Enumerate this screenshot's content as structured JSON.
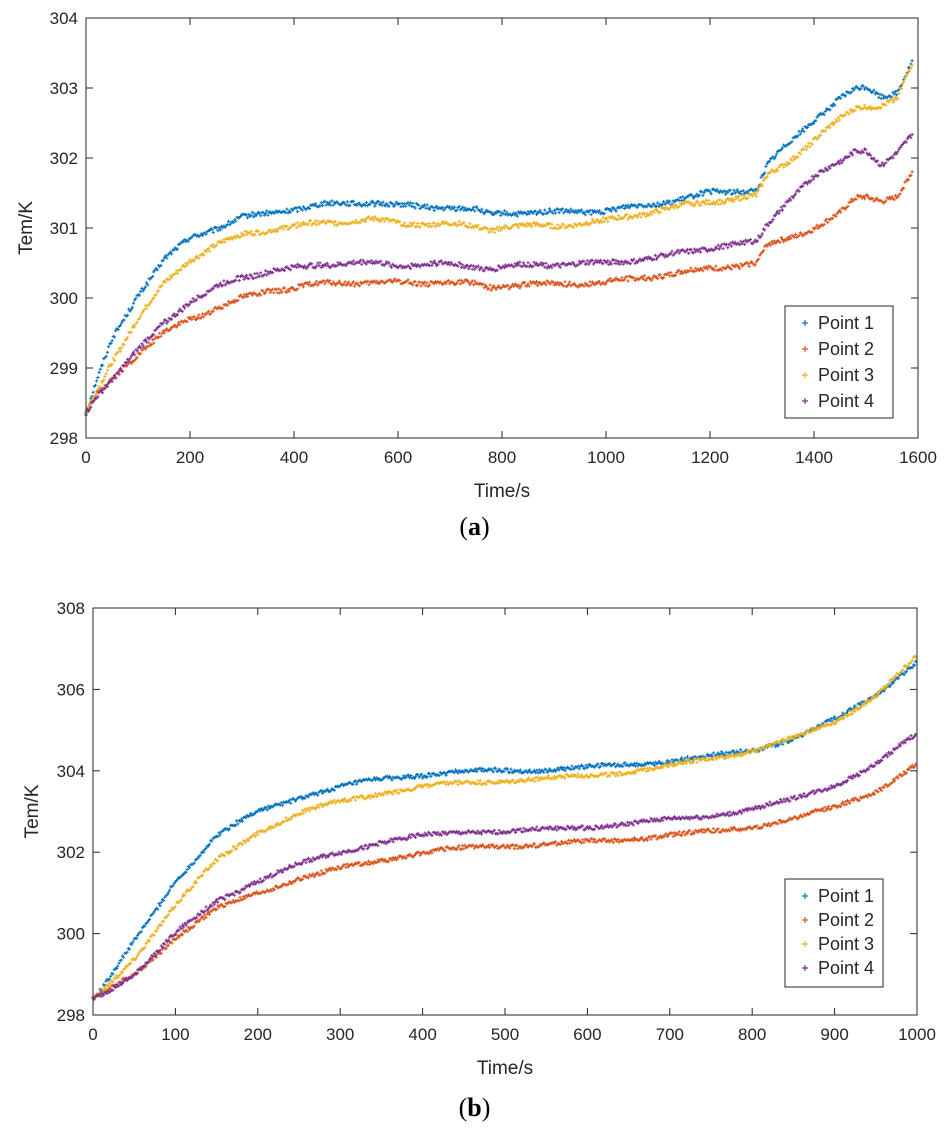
{
  "figure": {
    "captions": [
      {
        "open": "(",
        "letter": "a",
        "close": ")"
      },
      {
        "open": "(",
        "letter": "b",
        "close": ")"
      }
    ]
  },
  "chart_data": [
    {
      "type": "scatter",
      "title": "",
      "xlabel": "Time/s",
      "ylabel": "Tem/K",
      "xlim": [
        0,
        1600
      ],
      "ylim": [
        298,
        304
      ],
      "xticks": [
        0,
        200,
        400,
        600,
        800,
        1000,
        1200,
        1400,
        1600
      ],
      "yticks": [
        298,
        299,
        300,
        301,
        302,
        303,
        304
      ],
      "legend_position": "bottom-right",
      "marker": "+",
      "noise": 0.035,
      "series": [
        {
          "name": "Point 1",
          "color": "#0072BD",
          "x": [
            0,
            20,
            50,
            100,
            150,
            200,
            250,
            300,
            350,
            400,
            450,
            500,
            550,
            600,
            650,
            700,
            750,
            780,
            800,
            900,
            1000,
            1100,
            1200,
            1290,
            1310,
            1350,
            1400,
            1450,
            1480,
            1500,
            1530,
            1560,
            1590
          ],
          "values": [
            298.35,
            298.8,
            299.4,
            300.05,
            300.55,
            300.85,
            301.0,
            301.15,
            301.2,
            301.28,
            301.33,
            301.35,
            301.37,
            301.32,
            301.3,
            301.3,
            301.25,
            301.18,
            301.22,
            301.22,
            301.25,
            301.35,
            301.5,
            301.55,
            301.9,
            302.2,
            302.55,
            302.85,
            302.97,
            303.0,
            302.88,
            302.95,
            303.4
          ]
        },
        {
          "name": "Point 2",
          "color": "#D95319",
          "x": [
            0,
            20,
            50,
            100,
            150,
            200,
            250,
            300,
            350,
            400,
            450,
            500,
            550,
            600,
            650,
            700,
            750,
            780,
            800,
            900,
            1000,
            1100,
            1200,
            1290,
            1310,
            1350,
            1400,
            1450,
            1480,
            1500,
            1530,
            1560,
            1590
          ],
          "values": [
            298.35,
            298.6,
            298.85,
            299.2,
            299.5,
            299.7,
            299.85,
            300.0,
            300.1,
            300.15,
            300.2,
            300.22,
            300.22,
            300.22,
            300.22,
            300.22,
            300.2,
            300.15,
            300.18,
            300.2,
            300.22,
            300.32,
            300.42,
            300.5,
            300.75,
            300.85,
            301.0,
            301.2,
            301.42,
            301.45,
            301.4,
            301.45,
            301.8
          ]
        },
        {
          "name": "Point 3",
          "color": "#EDB120",
          "x": [
            0,
            20,
            50,
            100,
            150,
            200,
            250,
            300,
            350,
            400,
            450,
            500,
            550,
            600,
            650,
            700,
            750,
            780,
            800,
            900,
            1000,
            1100,
            1200,
            1290,
            1310,
            1350,
            1400,
            1450,
            1480,
            1500,
            1530,
            1560,
            1590
          ],
          "values": [
            298.35,
            298.65,
            299.1,
            299.7,
            300.2,
            300.55,
            300.75,
            300.9,
            300.98,
            301.02,
            301.07,
            301.1,
            301.12,
            301.07,
            301.06,
            301.05,
            301.02,
            300.98,
            301.02,
            301.03,
            301.1,
            301.25,
            301.38,
            301.45,
            301.75,
            301.95,
            302.25,
            302.55,
            302.72,
            302.75,
            302.75,
            302.85,
            303.35
          ]
        },
        {
          "name": "Point 4",
          "color": "#7E2F8E",
          "x": [
            0,
            20,
            50,
            100,
            150,
            200,
            250,
            300,
            350,
            400,
            450,
            500,
            550,
            600,
            650,
            700,
            750,
            780,
            800,
            900,
            1000,
            1100,
            1200,
            1290,
            1310,
            1350,
            1400,
            1450,
            1480,
            1500,
            1530,
            1560,
            1590
          ],
          "values": [
            298.35,
            298.6,
            298.85,
            299.25,
            299.65,
            299.95,
            300.15,
            300.3,
            300.38,
            300.42,
            300.48,
            300.5,
            300.5,
            300.47,
            300.48,
            300.48,
            300.45,
            300.42,
            300.45,
            300.48,
            300.5,
            300.58,
            300.72,
            300.8,
            301.05,
            301.4,
            301.72,
            301.95,
            302.12,
            302.12,
            301.88,
            302.05,
            302.35
          ]
        }
      ]
    },
    {
      "type": "scatter",
      "title": "",
      "xlabel": "Time/s",
      "ylabel": "Tem/K",
      "xlim": [
        0,
        1000
      ],
      "ylim": [
        298,
        308
      ],
      "xticks": [
        0,
        100,
        200,
        300,
        400,
        500,
        600,
        700,
        800,
        900,
        1000
      ],
      "yticks": [
        298,
        300,
        302,
        304,
        306,
        308
      ],
      "legend_position": "bottom-right",
      "marker": "+",
      "noise": 0.05,
      "series": [
        {
          "name": "Point 1",
          "color": "#0072BD",
          "x": [
            0,
            10,
            50,
            100,
            150,
            200,
            250,
            300,
            350,
            400,
            450,
            500,
            550,
            600,
            650,
            700,
            750,
            800,
            850,
            900,
            950,
            1000
          ],
          "values": [
            298.4,
            298.6,
            299.8,
            301.3,
            302.4,
            303.0,
            303.35,
            303.6,
            303.8,
            303.9,
            303.98,
            304.0,
            304.03,
            304.08,
            304.15,
            304.25,
            304.35,
            304.5,
            304.8,
            305.25,
            305.85,
            306.7
          ]
        },
        {
          "name": "Point 2",
          "color": "#D95319",
          "x": [
            0,
            10,
            50,
            100,
            150,
            200,
            250,
            300,
            350,
            400,
            450,
            500,
            550,
            600,
            650,
            700,
            750,
            800,
            850,
            900,
            950,
            1000
          ],
          "values": [
            298.4,
            298.5,
            299.0,
            299.9,
            300.6,
            301.0,
            301.35,
            301.6,
            301.8,
            302.0,
            302.1,
            302.15,
            302.2,
            302.25,
            302.32,
            302.42,
            302.5,
            302.62,
            302.82,
            303.1,
            303.5,
            304.15
          ]
        },
        {
          "name": "Point 3",
          "color": "#EDB120",
          "x": [
            0,
            10,
            50,
            100,
            150,
            200,
            250,
            300,
            350,
            400,
            450,
            500,
            550,
            600,
            650,
            700,
            750,
            800,
            850,
            900,
            950,
            1000
          ],
          "values": [
            298.4,
            298.55,
            299.4,
            300.7,
            301.8,
            302.5,
            302.95,
            303.25,
            303.45,
            303.6,
            303.7,
            303.75,
            303.8,
            303.88,
            303.98,
            304.12,
            304.3,
            304.5,
            304.8,
            305.2,
            305.85,
            306.8
          ]
        },
        {
          "name": "Point 4",
          "color": "#7E2F8E",
          "x": [
            0,
            10,
            50,
            100,
            150,
            200,
            250,
            300,
            350,
            400,
            450,
            500,
            550,
            600,
            650,
            700,
            750,
            800,
            850,
            900,
            950,
            1000
          ],
          "values": [
            298.4,
            298.5,
            299.0,
            300.0,
            300.8,
            301.3,
            301.7,
            302.0,
            302.25,
            302.4,
            302.5,
            302.52,
            302.55,
            302.62,
            302.7,
            302.8,
            302.9,
            303.05,
            303.3,
            303.65,
            304.15,
            304.9
          ]
        }
      ]
    }
  ]
}
